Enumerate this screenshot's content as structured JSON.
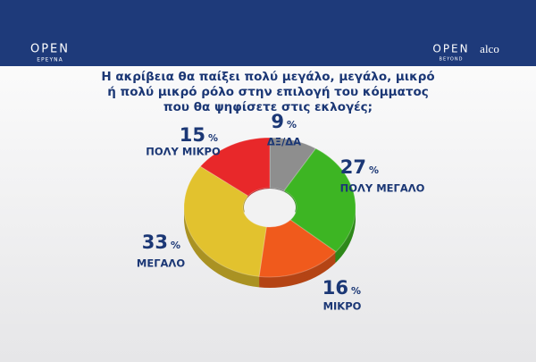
{
  "header": {
    "logo": "OPEN",
    "logo_sub": "ΕΡΕΥΝΑ",
    "partner": "OPEN",
    "partner_sub": "BEYOND",
    "brand": "alco"
  },
  "chart_data": {
    "type": "donut",
    "title": [
      "Η ακρίβεια θα παίξει πολύ μεγάλο, μεγάλο, μικρό",
      "ή πολύ μικρό ρόλο στην επιλογή του κόμματος",
      "που θα ψηφίσετε στις εκλογές;"
    ],
    "categories": [
      "ΔΞ/ΔΑ",
      "ΠΟΛΥ ΜΕΓΑΛΟ",
      "ΜΙΚΡΟ",
      "ΜΕΓΑΛΟ",
      "ΠΟΛΥ ΜΙΚΡΟ"
    ],
    "values": [
      9,
      27,
      16,
      33,
      15
    ],
    "unit": "%",
    "colors": [
      "#8e8e8e",
      "#3db523",
      "#f05a1c",
      "#e2c22e",
      "#e8282a"
    ]
  }
}
